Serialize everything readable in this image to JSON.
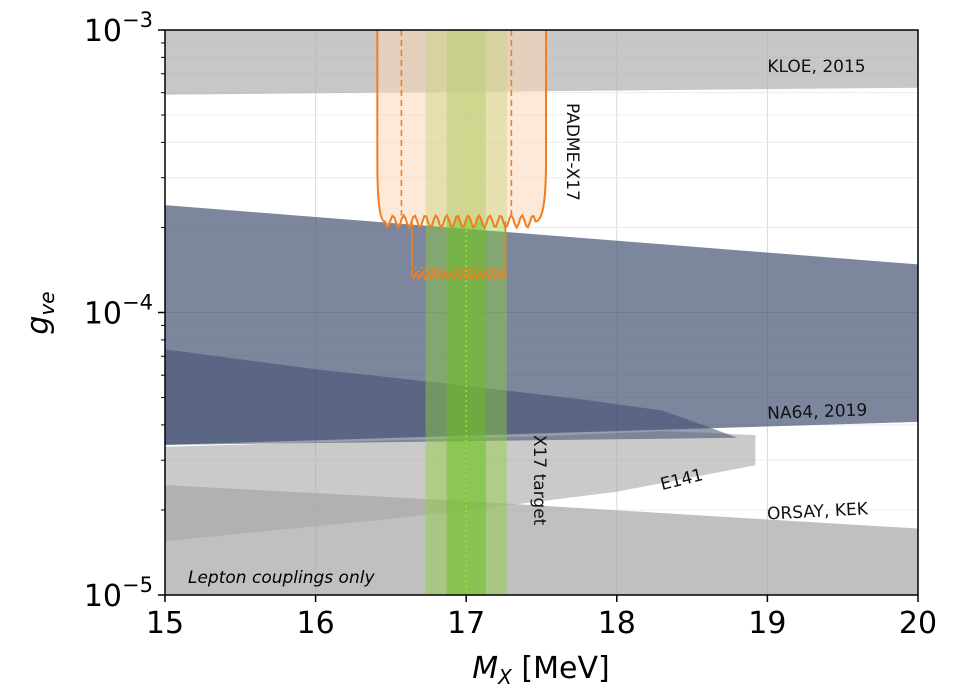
{
  "chart_data": {
    "type": "area",
    "xlabel_main": "M",
    "xlabel_sub": "X",
    "xlabel_unit": "[MeV]",
    "ylabel_main": "g",
    "ylabel_sub": "ve",
    "xlim": [
      15,
      20
    ],
    "ylim": [
      1e-05,
      0.001
    ],
    "yscale": "log",
    "grid": true,
    "x_ticks": [
      {
        "value": 15,
        "label": "15"
      },
      {
        "value": 16,
        "label": "16"
      },
      {
        "value": 17,
        "label": "17"
      },
      {
        "value": 18,
        "label": "18"
      },
      {
        "value": 19,
        "label": "19"
      },
      {
        "value": 20,
        "label": "20"
      }
    ],
    "y_ticks": [
      {
        "value": 1e-05,
        "base": "10",
        "exp": "−5"
      },
      {
        "value": 0.0001,
        "base": "10",
        "exp": "−4"
      },
      {
        "value": 0.001,
        "base": "10",
        "exp": "−3"
      }
    ],
    "note": "Lepton couplings only",
    "regions": [
      {
        "label": "KLOE, 2015",
        "color": "#a9aba8",
        "opacity": 0.65,
        "polygon": [
          [
            15,
            0.001
          ],
          [
            20,
            0.001
          ],
          [
            20,
            0.000625
          ],
          [
            15,
            0.00059
          ]
        ],
        "label_pos": [
          19.0,
          0.00071
        ],
        "label_rotation": 0
      },
      {
        "label": "ORSAY, KEK",
        "color": "#9ea09d",
        "opacity": 0.65,
        "polygon": [
          [
            15,
            2.45e-05
          ],
          [
            17,
            2.15e-05
          ],
          [
            19,
            1.85e-05
          ],
          [
            20,
            1.72e-05
          ],
          [
            20,
            1e-05
          ],
          [
            15,
            1e-05
          ]
        ],
        "label_pos": [
          19.0,
          1.85e-05
        ],
        "label_rotation": -3
      },
      {
        "label": "E141",
        "color": "#a6a8a5",
        "opacity": 0.6,
        "polygon": [
          [
            15,
            3.35e-05
          ],
          [
            17.5,
            3.65e-05
          ],
          [
            18.3,
            3.8e-05
          ],
          [
            18.6,
            3.75e-05
          ],
          [
            18.92,
            3.68e-05
          ],
          [
            18.92,
            2.88e-05
          ],
          [
            18,
            2.32e-05
          ],
          [
            17.2,
            2.05e-05
          ],
          [
            16.5,
            1.86e-05
          ],
          [
            15.5,
            1.65e-05
          ],
          [
            15,
            1.55e-05
          ]
        ],
        "label_pos": [
          18.3,
          2.35e-05
        ],
        "label_rotation": -14
      },
      {
        "label": "NA64, 2019",
        "color": "#3e4d6e",
        "opacity": 0.68,
        "polygon": [
          [
            15,
            0.00024
          ],
          [
            20,
            0.000148
          ],
          [
            20,
            4.1e-05
          ],
          [
            15,
            3.4e-05
          ]
        ],
        "label_pos": [
          19.0,
          4.2e-05
        ],
        "label_rotation": -2
      },
      {
        "label": "",
        "color": "#3e4d6e",
        "opacity": 0.55,
        "polygon": [
          [
            15,
            7.4e-05
          ],
          [
            16,
            6.3e-05
          ],
          [
            17,
            5.5e-05
          ],
          [
            17.8,
            4.9e-05
          ],
          [
            18.3,
            4.5e-05
          ],
          [
            18.6,
            3.95e-05
          ],
          [
            18.8,
            3.6e-05
          ],
          [
            15,
            3.4e-05
          ]
        ],
        "label_pos": null,
        "label_rotation": 0
      }
    ],
    "target_bands": {
      "label": "X17 target",
      "center": 17.0,
      "outer": [
        16.73,
        17.27
      ],
      "inner": [
        16.87,
        17.13
      ],
      "outer_color": "#8fce3c",
      "inner_color": "#6abf1f",
      "label_pos": [
        17.45,
        2.55e-05
      ],
      "label_rotation": 90
    },
    "padme": {
      "label": "PADME-X17",
      "color": "#f07d21",
      "fill": "#fbd7b6",
      "outer": {
        "left_x": 16.41,
        "right_x": 17.53,
        "floor_x": [
          16.46,
          17.46
        ],
        "floor_y": 0.00021
      },
      "outer_dashed": {
        "left_x": 16.57,
        "right_x": 17.3
      },
      "inner": {
        "left_x": 16.64,
        "right_x": 17.26,
        "floor_y": 0.000135
      },
      "label_pos": [
        17.67,
        0.00037
      ],
      "label_rotation": 90
    }
  }
}
